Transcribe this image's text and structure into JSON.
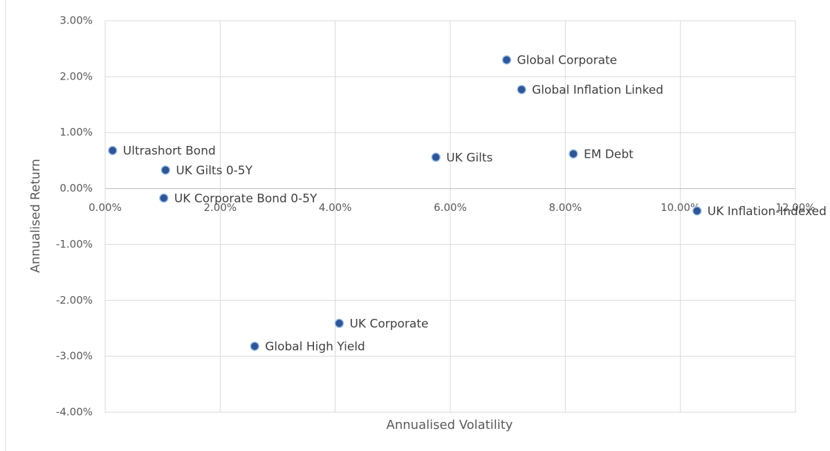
{
  "chart_data": {
    "type": "scatter",
    "x_label": "Annualised Volatility",
    "y_label": "Annualised Return",
    "color": "#2f5597",
    "grid": true,
    "labels": [
      "Ultrashort Bond",
      "UK Gilts 0-5Y",
      "UK Corporate Bond 0-5Y",
      "Global High Yield",
      "UK Corporate",
      "UK Gilts",
      "Global Corporate",
      "Global Inflation Linked",
      "EM Debt",
      "UK Inflation-Indexed"
    ],
    "x": [
      0.13,
      1.05,
      1.02,
      2.6,
      4.07,
      5.75,
      6.98,
      7.24,
      8.14,
      10.29
    ],
    "values": [
      0.68,
      0.33,
      -0.17,
      -2.82,
      -2.41,
      0.56,
      2.3,
      1.77,
      0.62,
      -0.4
    ],
    "xlim": [
      0,
      12
    ],
    "ylim": [
      -4,
      3
    ],
    "xticks": [
      {
        "value": 0,
        "label": "0.00%"
      },
      {
        "value": 2,
        "label": "2.00%"
      },
      {
        "value": 4,
        "label": "4.00%"
      },
      {
        "value": 6,
        "label": "6.00%"
      },
      {
        "value": 8,
        "label": "8.00%"
      },
      {
        "value": 10,
        "label": "10.00%"
      },
      {
        "value": 12,
        "label": "12.00%"
      }
    ],
    "yticks": [
      {
        "value": 3,
        "label": "3.00%"
      },
      {
        "value": 2,
        "label": "2.00%"
      },
      {
        "value": 1,
        "label": "1.00%"
      },
      {
        "value": 0,
        "label": "0.00%"
      },
      {
        "value": -1,
        "label": "-1.00%"
      },
      {
        "value": -2,
        "label": "-2.00%"
      },
      {
        "value": -3,
        "label": "-3.00%"
      },
      {
        "value": -4,
        "label": "-4.00%"
      }
    ]
  }
}
